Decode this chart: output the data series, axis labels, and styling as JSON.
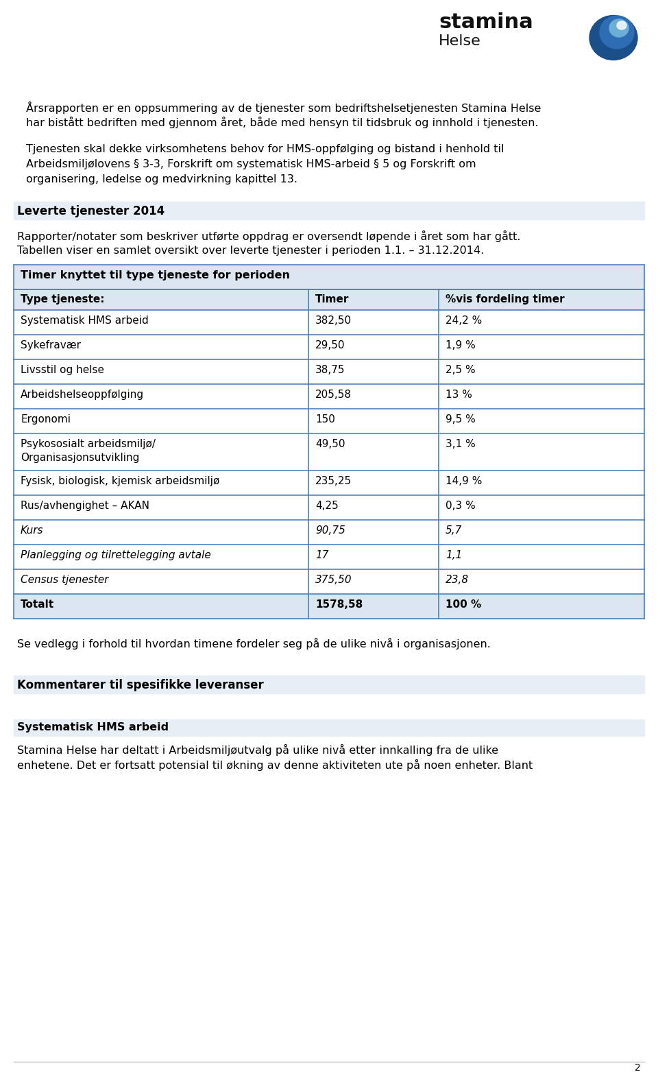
{
  "bg_color": "#ffffff",
  "para1_line1": "Årsrapporten er en oppsummering av de tjenester som bedriftshelsetjenesten Stamina Helse",
  "para1_line2": "har bistått bedriften med gjennom året, både med hensyn til tidsbruk og innhold i tjenesten.",
  "para2_line1": "Tjenesten skal dekke virksomhetens behov for HMS-oppfølging og bistand i henhold til",
  "para2_line2": "Arbeidsmiljølovens § 3-3, Forskrift om systematisk HMS-arbeid § 5 og Forskrift om",
  "para2_line3": "organisering, ledelse og medvirkning kapittel 13.",
  "section_header": "Leverte tjenester 2014",
  "section_sub1": "Rapporter/notater som beskriver utførte oppdrag er oversendt løpende i året som har gått.",
  "section_sub2": "Tabellen viser en samlet oversikt over leverte tjenester i perioden 1.1. – 31.12.2014.",
  "table_header": "Timer knyttet til type tjeneste for perioden",
  "table_col_headers": [
    "Type tjeneste:",
    "Timer",
    "%vis fordeling timer"
  ],
  "table_header_bg": "#dce6f1",
  "table_rows": [
    [
      "Systematisk HMS arbeid",
      "382,50",
      "24,2 %"
    ],
    [
      "Sykefravær",
      "29,50",
      "1,9 %"
    ],
    [
      "Livsstil og helse",
      "38,75",
      "2,5 %"
    ],
    [
      "Arbeidshelseoppfølging",
      "205,58",
      "13 %"
    ],
    [
      "Ergonomi",
      "150",
      "9,5 %"
    ],
    [
      "Psykososialt arbeidsmiljø/\nOrganisasjonsutvikling",
      "49,50",
      "3,1 %"
    ],
    [
      "Fysisk, biologisk, kjemisk arbeidsmiljø",
      "235,25",
      "14,9 %"
    ],
    [
      "Rus/avhengighet – AKAN",
      "4,25",
      "0,3 %"
    ],
    [
      "Kurs",
      "90,75",
      "5,7"
    ],
    [
      "Planlegging og tilrettelegging avtale",
      "17",
      "1,1"
    ],
    [
      "Census tjenester",
      "375,50",
      "23,8"
    ],
    [
      "Totalt",
      "1578,58",
      "100 %"
    ]
  ],
  "row_italic": [
    8,
    9,
    10
  ],
  "row_bold": [
    11
  ],
  "table_border_color": "#4f81bd",
  "footnote": "Se vedlegg i forhold til hvordan timene fordeler seg på de ulike nivå i organisasjonen.",
  "section2_header": "Kommentarer til spesifikke leveranser",
  "section3_header": "Systematisk HMS arbeid",
  "section3_body1": "Stamina Helse har deltatt i Arbeidsmiljøutvalg på ulike nivå etter innkalling fra de ulike",
  "section3_body2": "enhetene. Det er fortsatt potensial til økning av denne aktiviteten ute på noen enheter. Blant",
  "page_num": "2",
  "section_header_bg": "#e8eef6",
  "bottom_line_color": "#aaaaaa"
}
